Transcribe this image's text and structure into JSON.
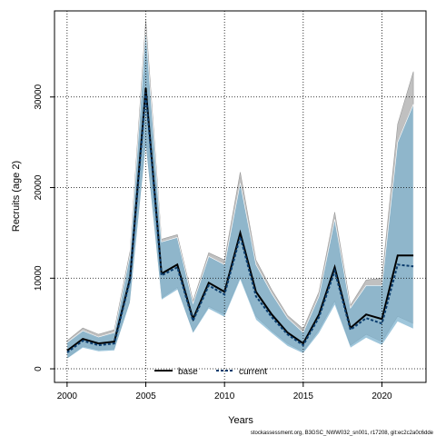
{
  "chart_data": {
    "type": "line",
    "xlabel": "Years",
    "ylabel": "Recruits (age 2)",
    "xlim": [
      1999.2,
      2022.8
    ],
    "ylim": [
      -1500,
      39500
    ],
    "xticks": [
      2000,
      2005,
      2010,
      2015,
      2020
    ],
    "yticks": [
      0,
      10000,
      20000,
      30000
    ],
    "grid": true,
    "legend_position": "bottom-center",
    "footer": "stockassessment.org, B3GSC_NWW032_sn001, r17208, git:ec2c2a0c6dde",
    "x": [
      2000,
      2001,
      2002,
      2003,
      2004,
      2005,
      2006,
      2007,
      2008,
      2009,
      2010,
      2011,
      2012,
      2013,
      2014,
      2015,
      2016,
      2017,
      2018,
      2019,
      2020,
      2021,
      2022
    ],
    "series": [
      {
        "name": "base",
        "line_color": "#000000",
        "line_style": "solid",
        "band_color": "#bdbdbd",
        "values": [
          2000,
          3300,
          2800,
          3000,
          10000,
          31000,
          10500,
          11500,
          5500,
          9500,
          8500,
          15000,
          8500,
          6000,
          4000,
          2800,
          6000,
          11200,
          4500,
          6000,
          5500,
          12500,
          12500
        ],
        "lower": [
          1200,
          2500,
          2100,
          2200,
          7500,
          25000,
          7800,
          9000,
          4100,
          6900,
          6000,
          10200,
          5800,
          4200,
          2800,
          1900,
          4300,
          7500,
          2600,
          3800,
          3000,
          5800,
          5000
        ],
        "upper": [
          3100,
          4500,
          3800,
          4300,
          13000,
          38500,
          14300,
          14800,
          7500,
          12800,
          12000,
          21700,
          12000,
          8700,
          5900,
          4400,
          8500,
          17300,
          7000,
          9800,
          10000,
          27000,
          32800
        ]
      },
      {
        "name": "current",
        "line_color": "#0b3d6e",
        "line_style": "dashed",
        "band_color": "#7fb3cf",
        "values": [
          1800,
          3100,
          2600,
          2800,
          9800,
          30500,
          10300,
          11200,
          5300,
          9200,
          8200,
          14600,
          8000,
          5700,
          3800,
          2600,
          5700,
          10800,
          4300,
          5600,
          5000,
          11500,
          11300
        ],
        "lower": [
          1100,
          2300,
          1900,
          2000,
          7300,
          24500,
          7600,
          8700,
          3900,
          6600,
          5700,
          9800,
          5400,
          3900,
          2500,
          1700,
          3900,
          7000,
          2300,
          3400,
          2600,
          5200,
          4400
        ],
        "upper": [
          2900,
          4200,
          3500,
          4000,
          12600,
          37500,
          14000,
          14500,
          7200,
          12400,
          11500,
          20500,
          11500,
          8300,
          5600,
          4000,
          8000,
          16500,
          6700,
          9200,
          9200,
          25000,
          29200
        ]
      }
    ]
  }
}
